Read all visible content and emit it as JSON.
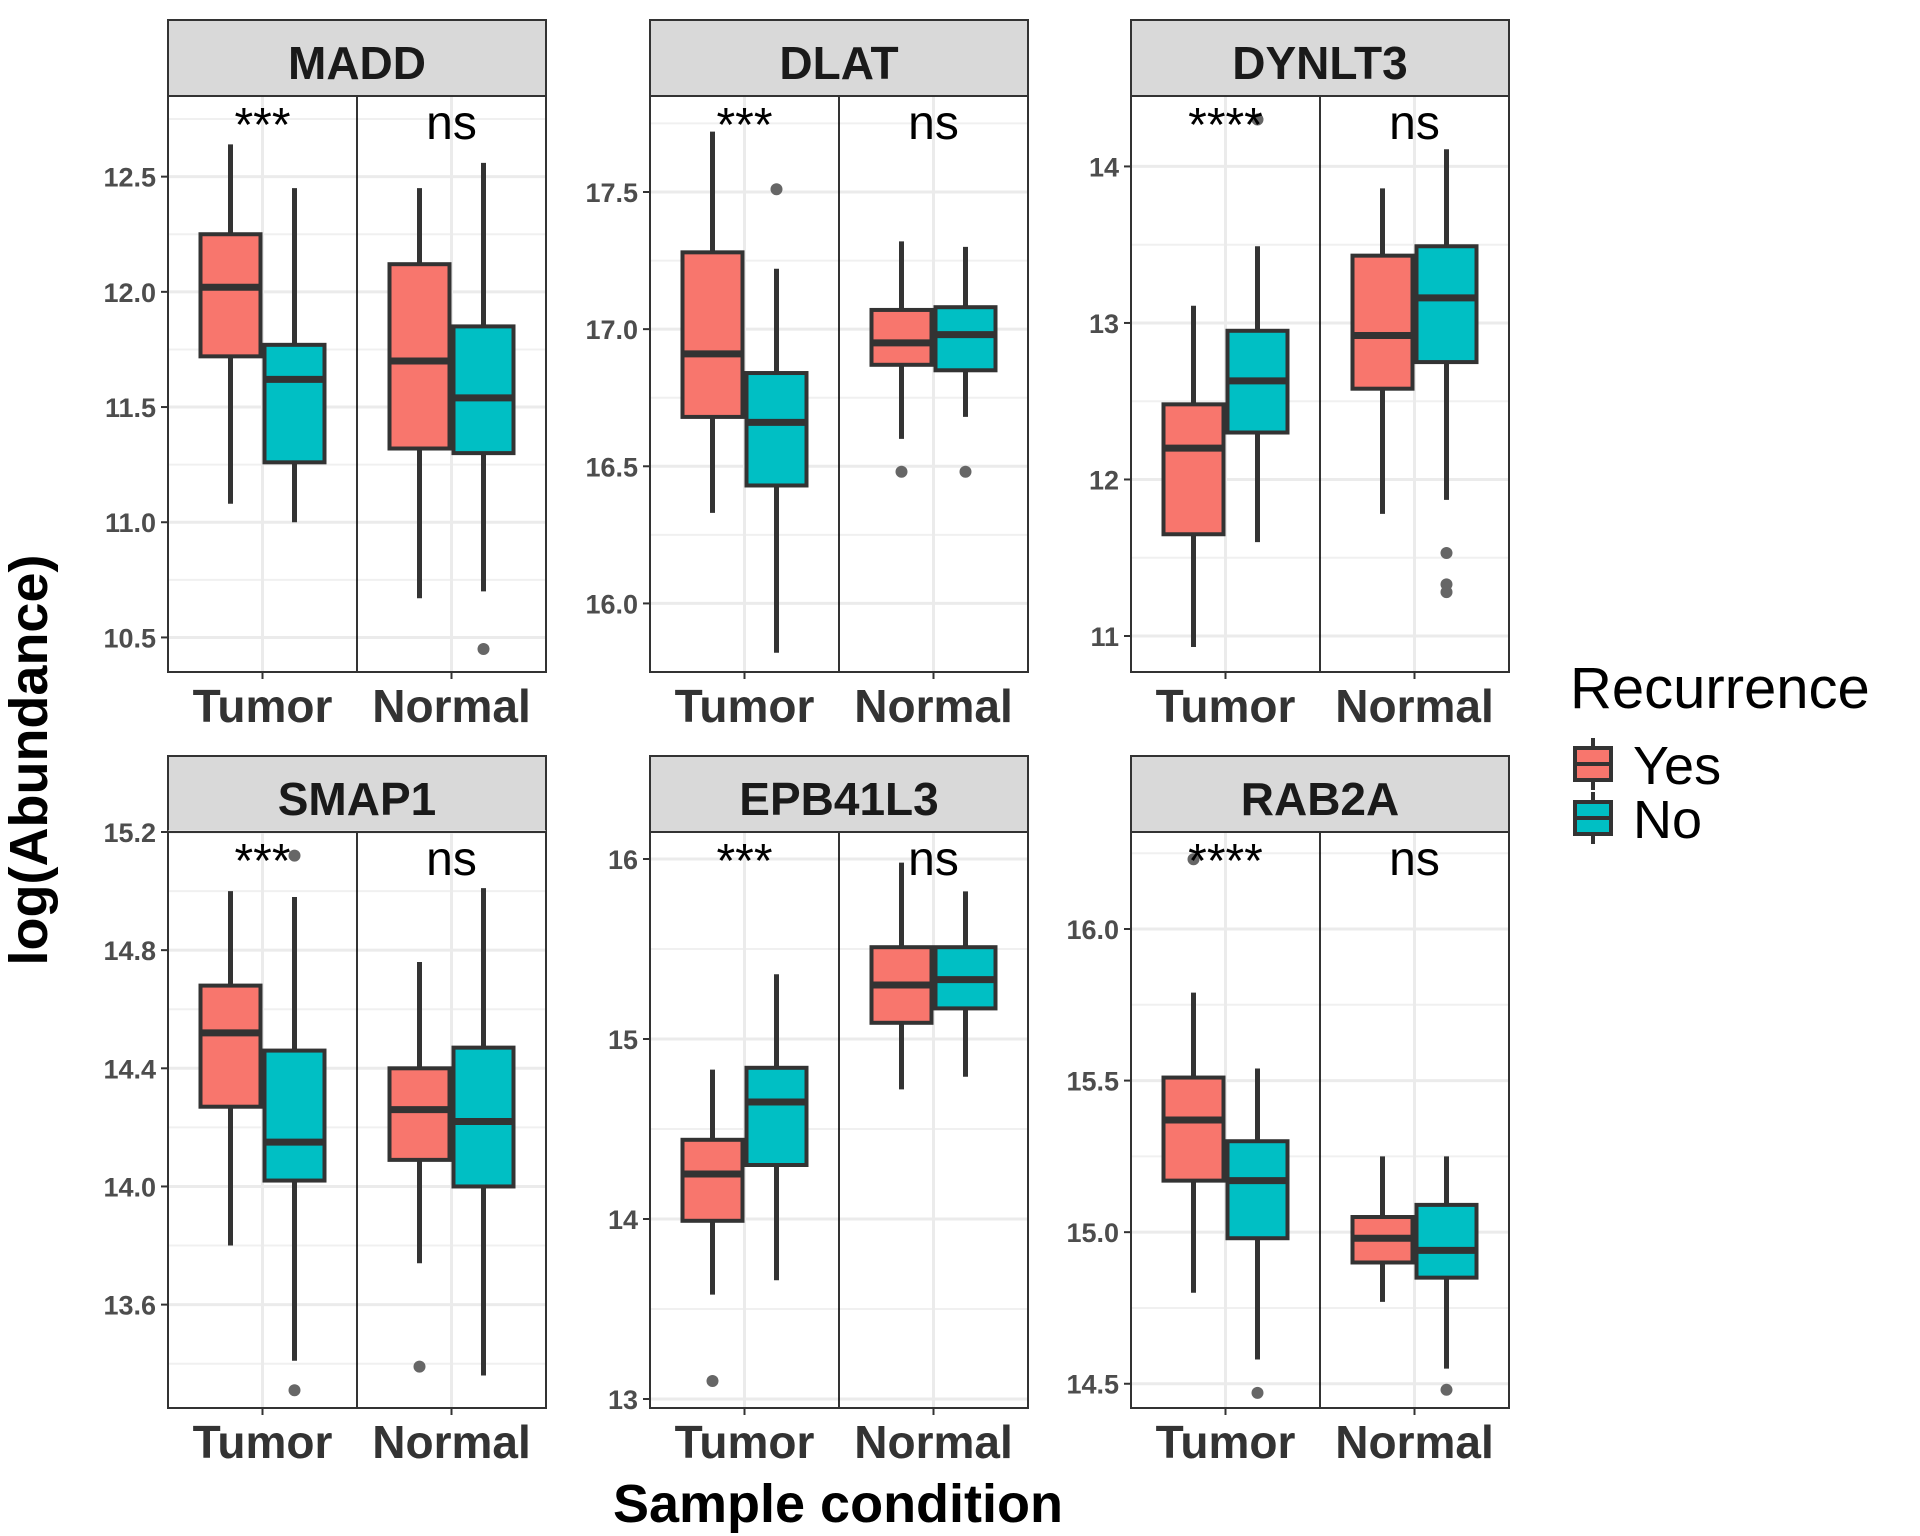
{
  "chart_data": {
    "type": "boxplot",
    "facet_layout": "2 rows x 3 columns",
    "xlabel": "Sample condition",
    "ylabel": "log(Abundance)",
    "legend": {
      "title": "Recurrence",
      "position": "right",
      "entries": [
        {
          "label": "Yes",
          "color": "#f8766d"
        },
        {
          "label": "No",
          "color": "#00bfc4"
        }
      ]
    },
    "categories": [
      "Tumor",
      "Normal"
    ],
    "grid": true,
    "panels": [
      {
        "title": "MADD",
        "ylim": [
          10.35,
          12.85
        ],
        "yticks": [
          10.5,
          11.0,
          11.5,
          12.0,
          12.5
        ],
        "tick_labels": [
          "10.5",
          "11.0",
          "11.5",
          "12.0",
          "12.5"
        ],
        "significance": [
          "***",
          "ns"
        ],
        "boxes": [
          {
            "category": "Tumor",
            "group": "Yes",
            "whisker_low": 11.08,
            "q1": 11.72,
            "median": 12.02,
            "q3": 12.25,
            "whisker_high": 12.64,
            "outliers": []
          },
          {
            "category": "Tumor",
            "group": "No",
            "whisker_low": 11.0,
            "q1": 11.26,
            "median": 11.62,
            "q3": 11.77,
            "whisker_high": 12.45,
            "outliers": []
          },
          {
            "category": "Normal",
            "group": "Yes",
            "whisker_low": 10.67,
            "q1": 11.32,
            "median": 11.7,
            "q3": 12.12,
            "whisker_high": 12.45,
            "outliers": []
          },
          {
            "category": "Normal",
            "group": "No",
            "whisker_low": 10.7,
            "q1": 11.3,
            "median": 11.54,
            "q3": 11.85,
            "whisker_high": 12.56,
            "outliers": [
              10.45
            ]
          }
        ]
      },
      {
        "title": "DLAT",
        "ylim": [
          15.75,
          17.85
        ],
        "yticks": [
          16.0,
          16.5,
          17.0,
          17.5
        ],
        "tick_labels": [
          "16.0",
          "16.5",
          "17.0",
          "17.5"
        ],
        "significance": [
          "***",
          "ns"
        ],
        "boxes": [
          {
            "category": "Tumor",
            "group": "Yes",
            "whisker_low": 16.33,
            "q1": 16.68,
            "median": 16.91,
            "q3": 17.28,
            "whisker_high": 17.72,
            "outliers": []
          },
          {
            "category": "Tumor",
            "group": "No",
            "whisker_low": 15.82,
            "q1": 16.43,
            "median": 16.66,
            "q3": 16.84,
            "whisker_high": 17.22,
            "outliers": [
              17.51
            ]
          },
          {
            "category": "Normal",
            "group": "Yes",
            "whisker_low": 16.6,
            "q1": 16.87,
            "median": 16.95,
            "q3": 17.07,
            "whisker_high": 17.32,
            "outliers": [
              16.48
            ]
          },
          {
            "category": "Normal",
            "group": "No",
            "whisker_low": 16.68,
            "q1": 16.85,
            "median": 16.98,
            "q3": 17.08,
            "whisker_high": 17.3,
            "outliers": [
              16.48
            ]
          }
        ]
      },
      {
        "title": "DYNLT3",
        "ylim": [
          10.77,
          14.45
        ],
        "yticks": [
          11,
          12,
          13,
          14
        ],
        "tick_labels": [
          "11",
          "12",
          "13",
          "14"
        ],
        "significance": [
          "****",
          "ns"
        ],
        "boxes": [
          {
            "category": "Tumor",
            "group": "Yes",
            "whisker_low": 10.93,
            "q1": 11.65,
            "median": 12.2,
            "q3": 12.48,
            "whisker_high": 13.11,
            "outliers": []
          },
          {
            "category": "Tumor",
            "group": "No",
            "whisker_low": 11.6,
            "q1": 12.3,
            "median": 12.63,
            "q3": 12.95,
            "whisker_high": 13.49,
            "outliers": [
              14.3
            ]
          },
          {
            "category": "Normal",
            "group": "Yes",
            "whisker_low": 11.78,
            "q1": 12.58,
            "median": 12.92,
            "q3": 13.43,
            "whisker_high": 13.86,
            "outliers": []
          },
          {
            "category": "Normal",
            "group": "No",
            "whisker_low": 11.87,
            "q1": 12.75,
            "median": 13.16,
            "q3": 13.49,
            "whisker_high": 14.11,
            "outliers": [
              11.53,
              11.33,
              11.28
            ]
          }
        ]
      },
      {
        "title": "SMAP1",
        "ylim": [
          13.25,
          15.2
        ],
        "yticks": [
          13.6,
          14.0,
          14.4,
          14.8,
          15.2
        ],
        "tick_labels": [
          "13.6",
          "14.0",
          "14.4",
          "14.8",
          "15.2"
        ],
        "significance": [
          "***",
          "ns"
        ],
        "boxes": [
          {
            "category": "Tumor",
            "group": "Yes",
            "whisker_low": 13.8,
            "q1": 14.27,
            "median": 14.52,
            "q3": 14.68,
            "whisker_high": 15.0,
            "outliers": []
          },
          {
            "category": "Tumor",
            "group": "No",
            "whisker_low": 13.41,
            "q1": 14.02,
            "median": 14.15,
            "q3": 14.46,
            "whisker_high": 14.98,
            "outliers": [
              15.12,
              13.31
            ]
          },
          {
            "category": "Normal",
            "group": "Yes",
            "whisker_low": 13.74,
            "q1": 14.09,
            "median": 14.26,
            "q3": 14.4,
            "whisker_high": 14.76,
            "outliers": [
              13.39
            ]
          },
          {
            "category": "Normal",
            "group": "No",
            "whisker_low": 13.36,
            "q1": 14.0,
            "median": 14.22,
            "q3": 14.47,
            "whisker_high": 15.01,
            "outliers": []
          }
        ]
      },
      {
        "title": "EPB41L3",
        "ylim": [
          12.95,
          16.15
        ],
        "yticks": [
          13,
          14,
          15,
          16
        ],
        "tick_labels": [
          "13",
          "14",
          "15",
          "16"
        ],
        "significance": [
          "***",
          "ns"
        ],
        "boxes": [
          {
            "category": "Tumor",
            "group": "Yes",
            "whisker_low": 13.58,
            "q1": 13.99,
            "median": 14.25,
            "q3": 14.44,
            "whisker_high": 14.83,
            "outliers": [
              13.1
            ]
          },
          {
            "category": "Tumor",
            "group": "No",
            "whisker_low": 13.66,
            "q1": 14.3,
            "median": 14.65,
            "q3": 14.84,
            "whisker_high": 15.36,
            "outliers": []
          },
          {
            "category": "Normal",
            "group": "Yes",
            "whisker_low": 14.72,
            "q1": 15.09,
            "median": 15.3,
            "q3": 15.51,
            "whisker_high": 15.98,
            "outliers": []
          },
          {
            "category": "Normal",
            "group": "No",
            "whisker_low": 14.79,
            "q1": 15.17,
            "median": 15.33,
            "q3": 15.51,
            "whisker_high": 15.82,
            "outliers": []
          }
        ]
      },
      {
        "title": "RAB2A",
        "ylim": [
          14.42,
          16.32
        ],
        "yticks": [
          14.5,
          15.0,
          15.5,
          16.0
        ],
        "tick_labels": [
          "14.5",
          "15.0",
          "15.5",
          "16.0"
        ],
        "significance": [
          "****",
          "ns"
        ],
        "boxes": [
          {
            "category": "Tumor",
            "group": "Yes",
            "whisker_low": 14.8,
            "q1": 15.17,
            "median": 15.37,
            "q3": 15.51,
            "whisker_high": 15.79,
            "outliers": [
              16.23
            ]
          },
          {
            "category": "Tumor",
            "group": "No",
            "whisker_low": 14.58,
            "q1": 14.98,
            "median": 15.17,
            "q3": 15.3,
            "whisker_high": 15.54,
            "outliers": [
              14.47
            ]
          },
          {
            "category": "Normal",
            "group": "Yes",
            "whisker_low": 14.77,
            "q1": 14.9,
            "median": 14.98,
            "q3": 15.05,
            "whisker_high": 15.25,
            "outliers": []
          },
          {
            "category": "Normal",
            "group": "No",
            "whisker_low": 14.55,
            "q1": 14.85,
            "median": 14.94,
            "q3": 15.09,
            "whisker_high": 15.25,
            "outliers": [
              14.48
            ]
          }
        ]
      }
    ]
  }
}
